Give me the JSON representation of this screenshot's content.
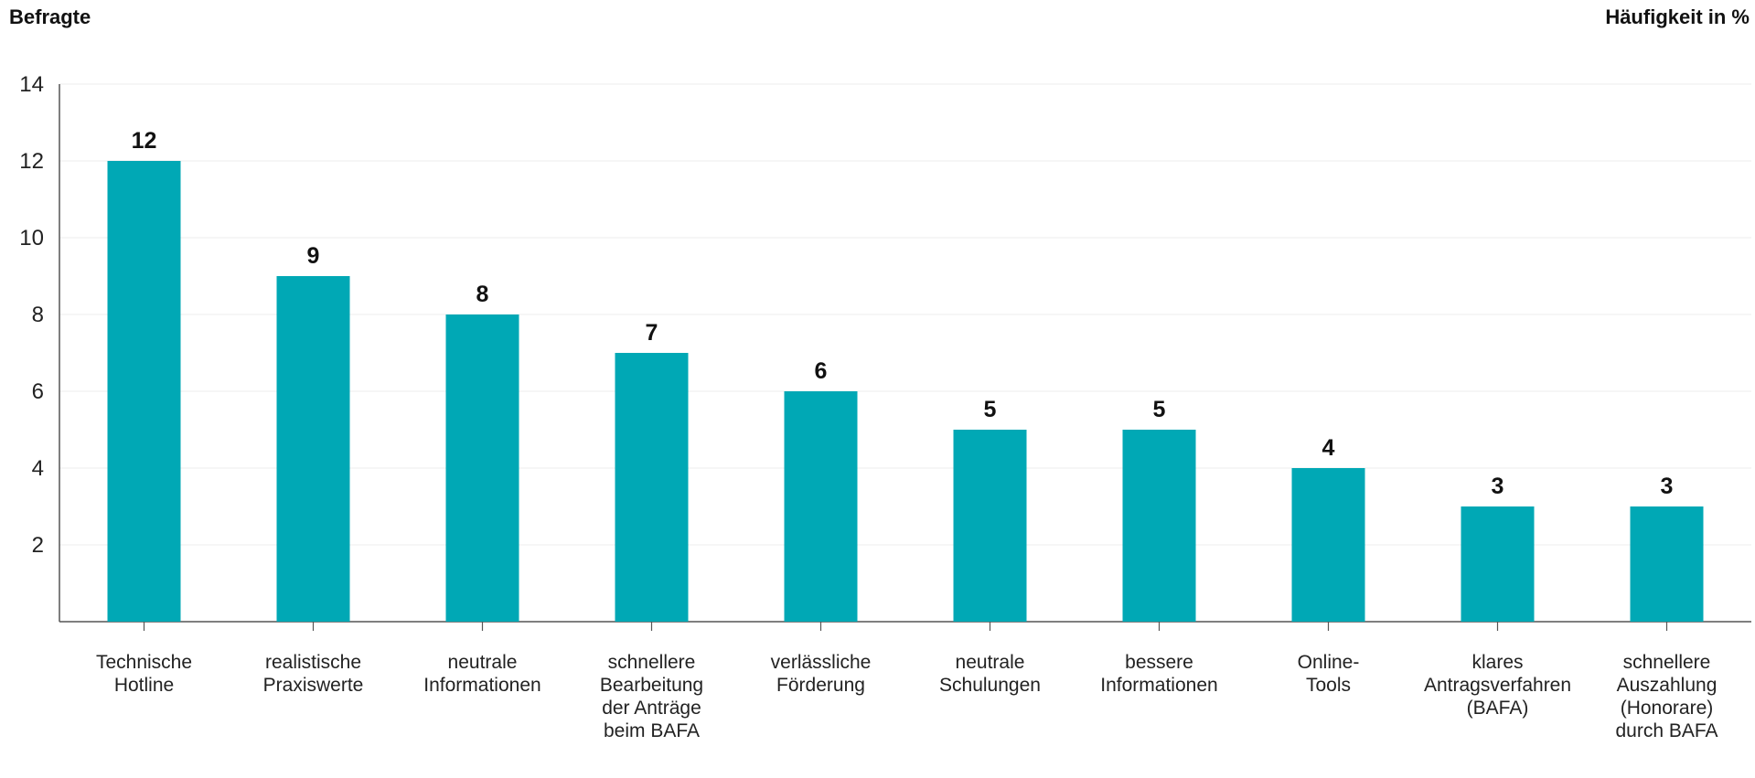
{
  "chart_data": {
    "type": "bar",
    "ylabel": "Befragte",
    "xlabel": "Häufigkeit in %",
    "ylim": [
      0,
      14
    ],
    "yticks": [
      2,
      4,
      6,
      8,
      10,
      12,
      14
    ],
    "grid": true,
    "bar_color": "#00A8B5",
    "categories": [
      "Technische\nHotline",
      "realistische\nPraxiswerte",
      "neutrale\nInformationen",
      "schnellere\nBearbeitung\nder Anträge\nbeim BAFA",
      "verlässliche\nFörderung",
      "neutrale\nSchulungen",
      "bessere\nInformationen",
      "Online-\nTools",
      "klares\nAntragsverfahren\n(BAFA)",
      "schnellere\nAuszahlung\n(Honorare)\ndurch BAFA"
    ],
    "values": [
      12,
      9,
      8,
      7,
      6,
      5,
      5,
      4,
      3,
      3
    ]
  }
}
